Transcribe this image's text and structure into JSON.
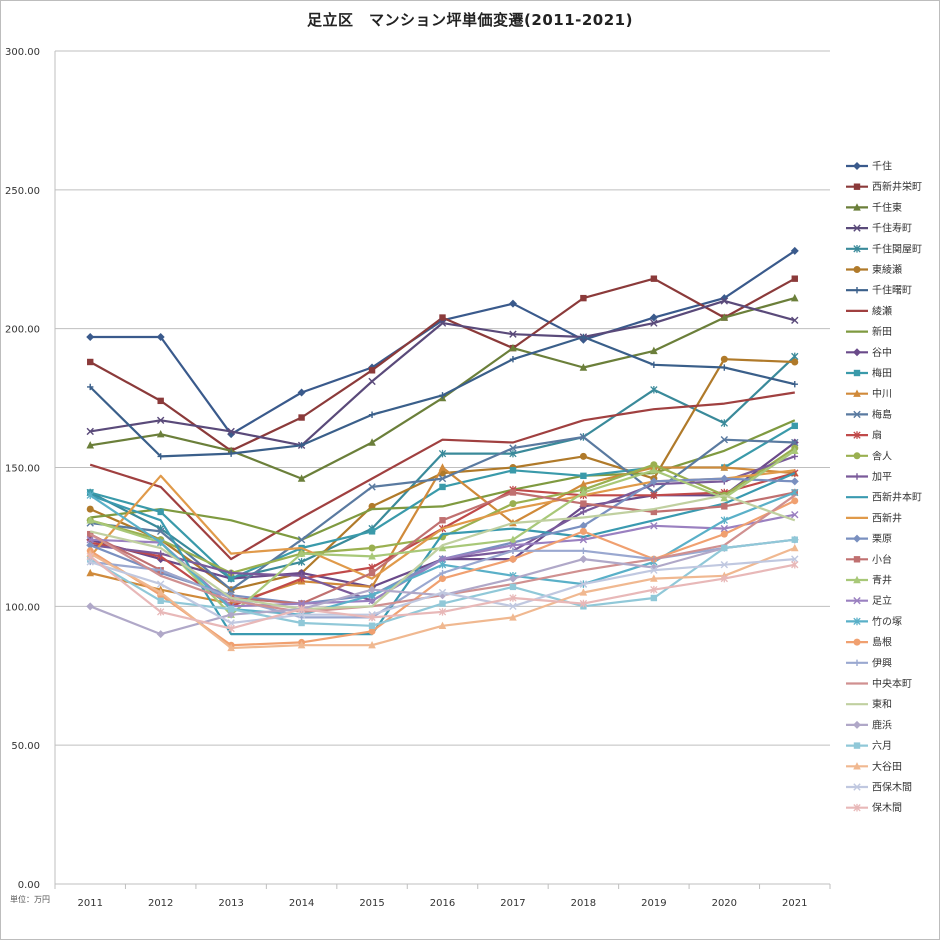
{
  "chart_data": {
    "type": "line",
    "title": "足立区　マンション坪単価変遷(2011-2021)",
    "unit_note": "単位：万円",
    "x": [
      "2011",
      "2012",
      "2013",
      "2014",
      "2015",
      "2016",
      "2017",
      "2018",
      "2019",
      "2020",
      "2021"
    ],
    "y_ticks": [
      "0.00",
      "50.00",
      "100.00",
      "150.00",
      "200.00",
      "250.00",
      "300.00"
    ],
    "ylim": [
      0,
      300
    ],
    "grid": "horizontal",
    "legend_position": "right",
    "series": [
      {
        "name": "千住",
        "color": "#3a5a8c",
        "marker": "diamond",
        "values": [
          197,
          197,
          162,
          177,
          186,
          203,
          209,
          196,
          204,
          211,
          228
        ]
      },
      {
        "name": "西新井栄町",
        "color": "#8b3a3a",
        "marker": "square",
        "values": [
          188,
          174,
          156,
          168,
          185,
          204,
          193,
          211,
          218,
          204,
          218
        ]
      },
      {
        "name": "千住東",
        "color": "#6b7f3a",
        "marker": "triangle",
        "values": [
          158,
          162,
          156,
          146,
          159,
          175,
          193,
          186,
          192,
          204,
          211
        ]
      },
      {
        "name": "千住寿町",
        "color": "#5a4a7a",
        "marker": "x",
        "values": [
          163,
          167,
          163,
          158,
          181,
          202,
          198,
          197,
          202,
          210,
          203
        ]
      },
      {
        "name": "千住関屋町",
        "color": "#3a8a9a",
        "marker": "star",
        "values": [
          141,
          128,
          110,
          116,
          128,
          155,
          155,
          161,
          178,
          166,
          190
        ]
      },
      {
        "name": "東綾瀬",
        "color": "#b07a2a",
        "marker": "circle",
        "values": [
          135,
          124,
          106,
          112,
          136,
          148,
          150,
          154,
          146,
          189,
          188
        ]
      },
      {
        "name": "千住曙町",
        "color": "#3a5f8a",
        "marker": "plus",
        "values": [
          179,
          154,
          155,
          158,
          169,
          176,
          189,
          197,
          187,
          186,
          180
        ]
      },
      {
        "name": "綾瀬",
        "color": "#a04040",
        "marker": "none",
        "values": [
          151,
          143,
          117,
          132,
          146,
          160,
          159,
          167,
          171,
          173,
          177
        ]
      },
      {
        "name": "新田",
        "color": "#7f9a40",
        "marker": "none",
        "values": [
          132,
          135,
          131,
          124,
          135,
          136,
          142,
          147,
          148,
          156,
          167
        ]
      },
      {
        "name": "谷中",
        "color": "#6a4a8a",
        "marker": "diamond",
        "values": [
          124,
          117,
          110,
          112,
          107,
          117,
          117,
          136,
          140,
          140,
          159
        ]
      },
      {
        "name": "梅田",
        "color": "#3a9aaa",
        "marker": "square",
        "values": [
          141,
          134,
          110,
          121,
          127,
          143,
          149,
          147,
          150,
          150,
          165
        ]
      },
      {
        "name": "中川",
        "color": "#d08a3a",
        "marker": "triangle",
        "values": [
          112,
          106,
          101,
          109,
          107,
          150,
          130,
          144,
          150,
          150,
          148
        ]
      },
      {
        "name": "梅島",
        "color": "#5a7aa0",
        "marker": "x",
        "values": [
          130,
          127,
          106,
          124,
          143,
          146,
          157,
          161,
          141,
          160,
          159
        ]
      },
      {
        "name": "扇",
        "color": "#c04a4a",
        "marker": "star",
        "values": [
          123,
          118,
          100,
          110,
          114,
          128,
          142,
          140,
          140,
          141,
          148
        ]
      },
      {
        "name": "舎人",
        "color": "#9ab050",
        "marker": "circle",
        "values": [
          131,
          124,
          112,
          119,
          121,
          125,
          137,
          142,
          151,
          140,
          157
        ]
      },
      {
        "name": "加平",
        "color": "#7a5a9a",
        "marker": "plus",
        "values": [
          122,
          119,
          112,
          111,
          102,
          117,
          120,
          134,
          144,
          145,
          154
        ]
      },
      {
        "name": "西新井本町",
        "color": "#3a9ab0",
        "marker": "none",
        "values": [
          140,
          131,
          90,
          90,
          90,
          126,
          128,
          125,
          131,
          137,
          148
        ]
      },
      {
        "name": "西新井",
        "color": "#e09a4a",
        "marker": "none",
        "values": [
          118,
          147,
          119,
          121,
          110,
          128,
          135,
          140,
          145,
          146,
          149
        ]
      },
      {
        "name": "栗原",
        "color": "#7a90c0",
        "marker": "diamond",
        "values": [
          122,
          112,
          104,
          101,
          104,
          117,
          123,
          129,
          145,
          146,
          145
        ]
      },
      {
        "name": "小台",
        "color": "#c07070",
        "marker": "square",
        "values": [
          126,
          113,
          103,
          101,
          112,
          131,
          141,
          137,
          134,
          136,
          141
        ]
      },
      {
        "name": "青井",
        "color": "#a8c878",
        "marker": "triangle",
        "values": [
          131,
          123,
          97,
          119,
          118,
          121,
          124,
          141,
          149,
          139,
          156
        ]
      },
      {
        "name": "足立",
        "color": "#9a80c0",
        "marker": "x",
        "values": [
          124,
          123,
          100,
          101,
          102,
          117,
          122,
          124,
          129,
          128,
          133
        ]
      },
      {
        "name": "竹の塚",
        "color": "#5ab0c8",
        "marker": "star",
        "values": [
          140,
          123,
          99,
          97,
          104,
          115,
          111,
          108,
          116,
          131,
          141
        ]
      },
      {
        "name": "島根",
        "color": "#f0a070",
        "marker": "circle",
        "values": [
          120,
          104,
          86,
          87,
          91,
          110,
          117,
          127,
          117,
          126,
          138
        ]
      },
      {
        "name": "伊興",
        "color": "#9aa8d0",
        "marker": "plus",
        "values": [
          116,
          113,
          103,
          96,
          96,
          112,
          120,
          120,
          117,
          121,
          124
        ]
      },
      {
        "name": "中央本町",
        "color": "#d09090",
        "marker": "none",
        "values": [
          126,
          111,
          102,
          98,
          100,
          104,
          108,
          113,
          117,
          122,
          140
        ]
      },
      {
        "name": "東和",
        "color": "#c0d0a0",
        "marker": "none",
        "values": [
          127,
          121,
          103,
          99,
          100,
          122,
          130,
          132,
          135,
          140,
          131
        ]
      },
      {
        "name": "鹿浜",
        "color": "#b0a8c8",
        "marker": "diamond",
        "values": [
          100,
          90,
          97,
          99,
          106,
          104,
          110,
          117,
          114,
          121,
          124
        ]
      },
      {
        "name": "六月",
        "color": "#90c8d8",
        "marker": "square",
        "values": [
          117,
          102,
          99,
          94,
          93,
          101,
          107,
          100,
          103,
          121,
          124
        ]
      },
      {
        "name": "大谷田",
        "color": "#f0b890",
        "marker": "triangle",
        "values": [
          119,
          105,
          85,
          86,
          86,
          93,
          96,
          105,
          110,
          111,
          121
        ]
      },
      {
        "name": "西保木間",
        "color": "#c0c8e0",
        "marker": "x",
        "values": [
          116,
          108,
          94,
          97,
          97,
          105,
          100,
          108,
          113,
          115,
          117
        ]
      },
      {
        "name": "保木間",
        "color": "#e8b8b8",
        "marker": "star",
        "values": [
          118,
          98,
          92,
          99,
          96,
          98,
          103,
          101,
          106,
          110,
          115
        ]
      }
    ]
  }
}
